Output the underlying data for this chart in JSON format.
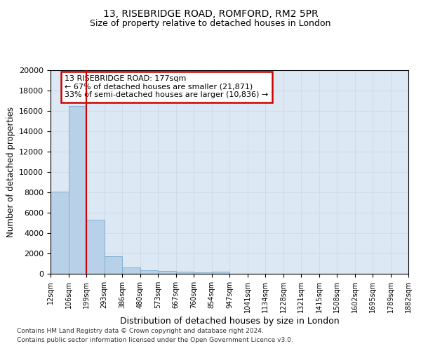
{
  "title1": "13, RISEBRIDGE ROAD, ROMFORD, RM2 5PR",
  "title2": "Size of property relative to detached houses in London",
  "xlabel": "Distribution of detached houses by size in London",
  "ylabel": "Number of detached properties",
  "bar_values": [
    8100,
    16500,
    5300,
    1750,
    650,
    350,
    260,
    220,
    170,
    200,
    0,
    0,
    0,
    0,
    0,
    0,
    0,
    0,
    0,
    0
  ],
  "categories": [
    "12sqm",
    "106sqm",
    "199sqm",
    "293sqm",
    "386sqm",
    "480sqm",
    "573sqm",
    "667sqm",
    "760sqm",
    "854sqm",
    "947sqm",
    "1041sqm",
    "1134sqm",
    "1228sqm",
    "1321sqm",
    "1415sqm",
    "1508sqm",
    "1602sqm",
    "1695sqm",
    "1789sqm",
    "1882sqm"
  ],
  "bar_color": "#b8d0e8",
  "bar_edge_color": "#7aabcf",
  "redline_x": 2,
  "annotation_title": "13 RISEBRIDGE ROAD: 177sqm",
  "annotation_line1": "← 67% of detached houses are smaller (21,871)",
  "annotation_line2": "33% of semi-detached houses are larger (10,836) →",
  "annotation_box_color": "#ffffff",
  "annotation_border_color": "#cc0000",
  "redline_color": "#cc0000",
  "ylim": [
    0,
    20000
  ],
  "yticks": [
    0,
    2000,
    4000,
    6000,
    8000,
    10000,
    12000,
    14000,
    16000,
    18000,
    20000
  ],
  "grid_color": "#d0dce8",
  "bg_color": "#dde8f5",
  "footer1": "Contains HM Land Registry data © Crown copyright and database right 2024.",
  "footer2": "Contains public sector information licensed under the Open Government Licence v3.0."
}
